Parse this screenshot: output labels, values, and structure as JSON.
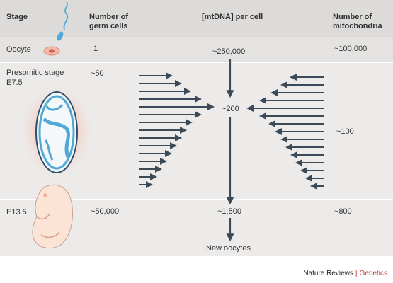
{
  "headers": {
    "stage": "Stage",
    "germ_cells": "Number of germ cells",
    "mtdna": "[mtDNA] per cell",
    "mitochondria": "Number of mitochondria"
  },
  "rows": [
    {
      "stage": "Oocyte",
      "germ_cells": "1",
      "mtdna": "~250,000",
      "mitochondria": "~100,000"
    },
    {
      "stage": "Presomitic stage E7.5",
      "germ_cells": "~50",
      "mtdna": "~200",
      "mitochondria": "~100"
    },
    {
      "stage": "E13.5",
      "germ_cells": "~50,000",
      "mtdna": "~1,500",
      "mitochondria": "~800"
    }
  ],
  "bottom_label": "New oocytes",
  "credit": {
    "journal": "Nature Reviews",
    "section": "Genetics"
  },
  "colors": {
    "arrow": "#3c4a57",
    "embryo_blue": "#4fa9d4",
    "pink": "#f2c7b9",
    "accent": "#c0392b"
  }
}
